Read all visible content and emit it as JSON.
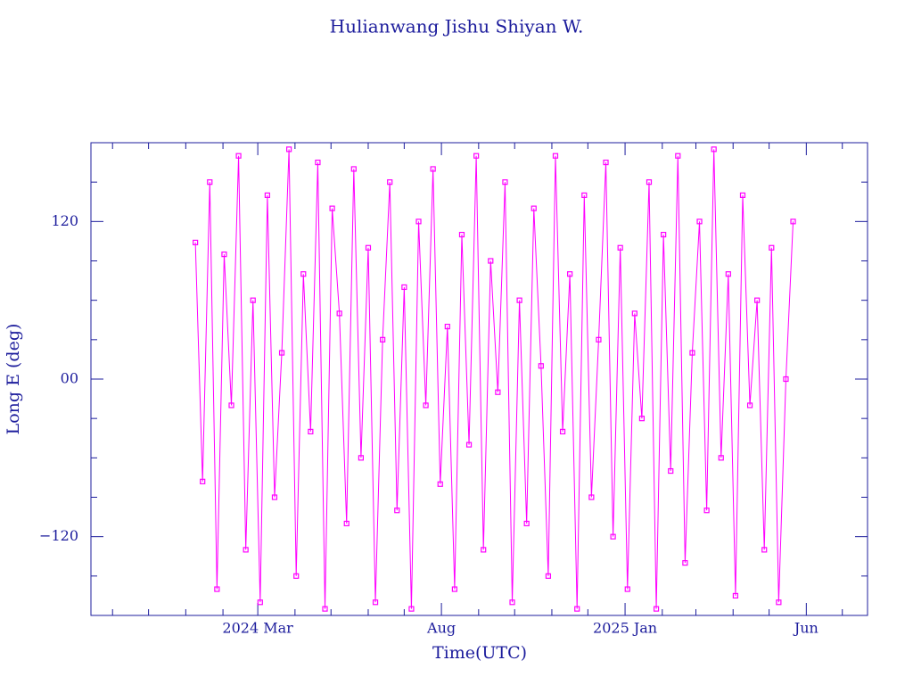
{
  "chart_data": {
    "type": "line",
    "title": "Hulianwang Jishu Shiyan W.",
    "x_label": "Time(UTC)",
    "y_label": "Long E (deg)",
    "xlim": [
      "2023-10-14",
      "2025-07-22"
    ],
    "xticks": [
      {
        "value": "2024-03-01",
        "label": "2024 Mar"
      },
      {
        "value": "2024-08-01",
        "label": "Aug"
      },
      {
        "value": "2025-01-01",
        "label": "2025 Jan"
      },
      {
        "value": "2025-06-01",
        "label": "Jun"
      }
    ],
    "xminorticks": [
      "2023-11-01",
      "2023-12-01",
      "2024-01-01",
      "2024-02-01",
      "2024-04-01",
      "2024-05-01",
      "2024-06-01",
      "2024-07-01",
      "2024-09-01",
      "2024-10-01",
      "2024-11-01",
      "2024-12-01",
      "2025-02-01",
      "2025-03-01",
      "2025-04-01",
      "2025-05-01",
      "2025-07-01"
    ],
    "ylim": [
      -180,
      180
    ],
    "yticks": [
      {
        "value": -120,
        "label": "−120"
      },
      {
        "value": 0,
        "label": "00"
      },
      120
    ],
    "yminorticks": [
      -150,
      -90,
      -60,
      -30,
      30,
      60,
      90,
      150
    ],
    "x": [
      "2024-01-09",
      "2024-01-15",
      "2024-01-21",
      "2024-01-27",
      "2024-02-02",
      "2024-02-08",
      "2024-02-14",
      "2024-02-20",
      "2024-02-26",
      "2024-03-03",
      "2024-03-09",
      "2024-03-15",
      "2024-03-21",
      "2024-03-27",
      "2024-04-02",
      "2024-04-08",
      "2024-04-14",
      "2024-04-20",
      "2024-04-26",
      "2024-05-02",
      "2024-05-08",
      "2024-05-14",
      "2024-05-20",
      "2024-05-26",
      "2024-06-01",
      "2024-06-07",
      "2024-06-13",
      "2024-06-19",
      "2024-06-25",
      "2024-07-01",
      "2024-07-07",
      "2024-07-13",
      "2024-07-19",
      "2024-07-25",
      "2024-07-31",
      "2024-08-06",
      "2024-08-12",
      "2024-08-18",
      "2024-08-24",
      "2024-08-30",
      "2024-09-05",
      "2024-09-11",
      "2024-09-17",
      "2024-09-23",
      "2024-09-29",
      "2024-10-05",
      "2024-10-11",
      "2024-10-17",
      "2024-10-23",
      "2024-10-29",
      "2024-11-04",
      "2024-11-10",
      "2024-11-16",
      "2024-11-22",
      "2024-11-28",
      "2024-12-04",
      "2024-12-10",
      "2024-12-16",
      "2024-12-22",
      "2024-12-28",
      "2025-01-03",
      "2025-01-09",
      "2025-01-15",
      "2025-01-21",
      "2025-01-27",
      "2025-02-02",
      "2025-02-08",
      "2025-02-14",
      "2025-02-20",
      "2025-02-26",
      "2025-03-04",
      "2025-03-10",
      "2025-03-16",
      "2025-03-22",
      "2025-03-28",
      "2025-04-03",
      "2025-04-09",
      "2025-04-15",
      "2025-04-21",
      "2025-04-27",
      "2025-05-03",
      "2025-05-09",
      "2025-05-15",
      "2025-05-21"
    ],
    "series": [
      {
        "color": "#ff00ff",
        "values": [
          104,
          -78,
          150,
          -160,
          95,
          -20,
          170,
          -130,
          60,
          -170,
          140,
          -90,
          20,
          175,
          -150,
          80,
          -40,
          165,
          -175,
          130,
          50,
          -110,
          160,
          -60,
          100,
          -170,
          30,
          150,
          -100,
          70,
          -175,
          120,
          -20,
          160,
          -80,
          40,
          -160,
          110,
          -50,
          170,
          -130,
          90,
          -10,
          150,
          -170,
          60,
          -110,
          130,
          10,
          -150,
          170,
          -40,
          80,
          -175,
          140,
          -90,
          30,
          165,
          -120,
          100,
          -160,
          50,
          -30,
          150,
          -175,
          110,
          -70,
          170,
          -140,
          20,
          120,
          -100,
          175,
          -60,
          80,
          -165,
          140,
          -20,
          60,
          -130,
          100,
          -170,
          0,
          120
        ]
      }
    ]
  }
}
